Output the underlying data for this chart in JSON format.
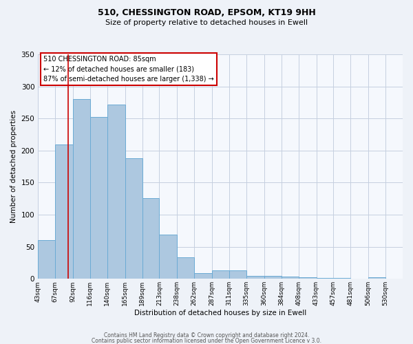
{
  "title1": "510, CHESSINGTON ROAD, EPSOM, KT19 9HH",
  "title2": "Size of property relative to detached houses in Ewell",
  "xlabel": "Distribution of detached houses by size in Ewell",
  "ylabel": "Number of detached properties",
  "bar_left_edges": [
    43,
    67,
    92,
    116,
    140,
    165,
    189,
    213,
    238,
    262,
    287,
    311,
    335,
    360,
    384,
    408,
    433,
    457,
    481,
    506
  ],
  "bar_widths": [
    24,
    25,
    24,
    24,
    25,
    24,
    24,
    25,
    24,
    25,
    24,
    24,
    25,
    24,
    24,
    25,
    24,
    24,
    25,
    24
  ],
  "bar_heights": [
    60,
    210,
    280,
    252,
    272,
    188,
    126,
    69,
    34,
    9,
    13,
    13,
    5,
    5,
    3,
    2,
    1,
    1,
    0,
    2
  ],
  "tick_labels": [
    "43sqm",
    "67sqm",
    "92sqm",
    "116sqm",
    "140sqm",
    "165sqm",
    "189sqm",
    "213sqm",
    "238sqm",
    "262sqm",
    "287sqm",
    "311sqm",
    "335sqm",
    "360sqm",
    "384sqm",
    "408sqm",
    "433sqm",
    "457sqm",
    "481sqm",
    "506sqm",
    "530sqm"
  ],
  "bar_color": "#adc8e0",
  "bar_edge_color": "#6aaad4",
  "vline_x": 85,
  "vline_color": "#cc0000",
  "ylim": [
    0,
    350
  ],
  "yticks": [
    0,
    50,
    100,
    150,
    200,
    250,
    300,
    350
  ],
  "annotation_line1": "510 CHESSINGTON ROAD: 85sqm",
  "annotation_line2": "← 12% of detached houses are smaller (183)",
  "annotation_line3": "87% of semi-detached houses are larger (1,338) →",
  "footer1": "Contains HM Land Registry data © Crown copyright and database right 2024.",
  "footer2": "Contains public sector information licensed under the Open Government Licence v 3.0.",
  "bg_color": "#eef2f8",
  "plot_bg_color": "#f5f8fd",
  "grid_color": "#c5cfe0"
}
